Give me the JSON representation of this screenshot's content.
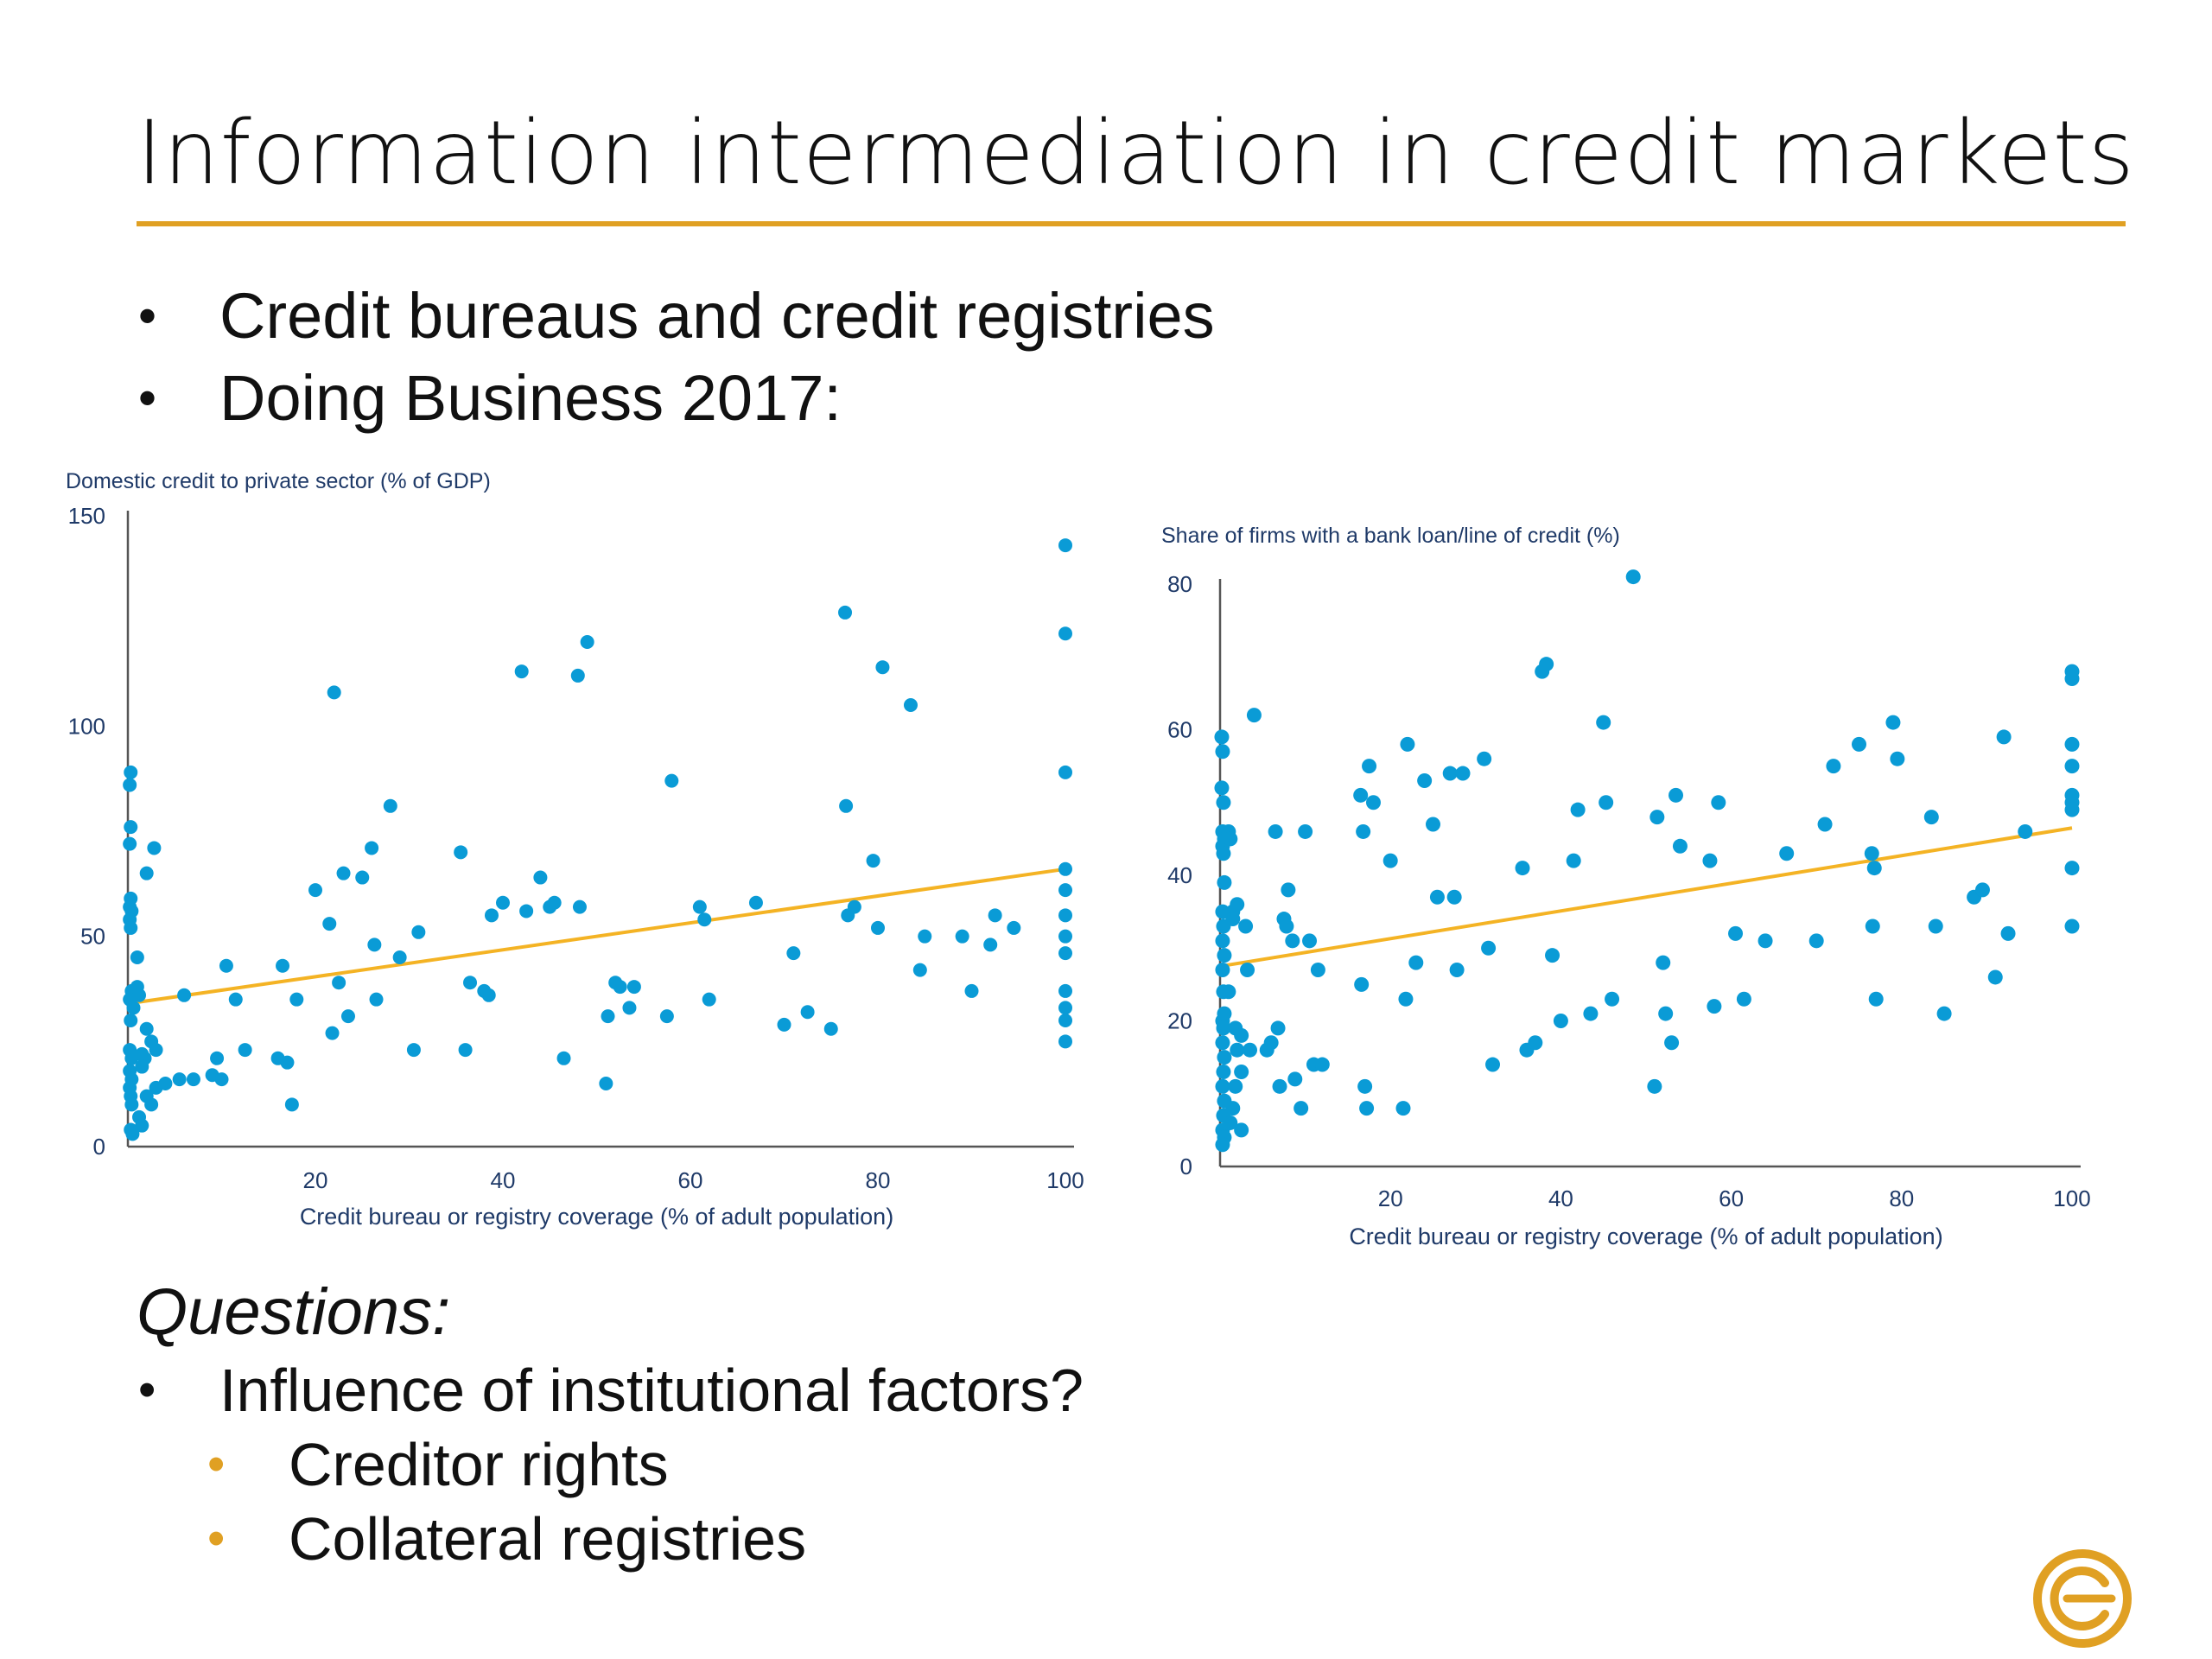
{
  "slide": {
    "title": "Information intermediation in credit markets",
    "accent_color": "#E0A023",
    "bullets": [
      "Credit bureaus and credit registries",
      "Doing Business 2017:"
    ],
    "questions_heading": "Questions:",
    "questions": [
      {
        "level": 1,
        "text": "Influence of institutional factors?"
      },
      {
        "level": 2,
        "text": "Creditor rights"
      },
      {
        "level": 2,
        "text": "Collateral registries"
      }
    ],
    "logo_icon": "circled-c-logo-icon"
  },
  "chart_data": [
    {
      "type": "scatter",
      "ylabel": "Domestic credit to private sector (% of GDP)",
      "xlabel": "Credit bureau or registry coverage (% of adult population)",
      "xlim": [
        0,
        100
      ],
      "ylim": [
        0,
        150
      ],
      "xticks": [
        20,
        40,
        60,
        80,
        100
      ],
      "yticks": [
        0,
        50,
        100,
        150
      ],
      "point_color": "#0A9BD6",
      "trend_color": "#F4B324",
      "trendline": [
        [
          0,
          34
        ],
        [
          100,
          66
        ]
      ],
      "points": [
        [
          0.3,
          89
        ],
        [
          0.2,
          86
        ],
        [
          0.3,
          76
        ],
        [
          0.2,
          72
        ],
        [
          0.3,
          59
        ],
        [
          0.2,
          57
        ],
        [
          0.4,
          56
        ],
        [
          0.2,
          54
        ],
        [
          0.3,
          52
        ],
        [
          0.4,
          37
        ],
        [
          0.2,
          35
        ],
        [
          0.6,
          33
        ],
        [
          0.3,
          30
        ],
        [
          0.2,
          23
        ],
        [
          0.4,
          21
        ],
        [
          0.2,
          18
        ],
        [
          0.4,
          16
        ],
        [
          0.2,
          14
        ],
        [
          0.3,
          12
        ],
        [
          0.4,
          10
        ],
        [
          0.3,
          4
        ],
        [
          0.5,
          3
        ],
        [
          1.0,
          38
        ],
        [
          1.2,
          36
        ],
        [
          1.0,
          45
        ],
        [
          1.5,
          22
        ],
        [
          1.8,
          21
        ],
        [
          1.5,
          19
        ],
        [
          2.0,
          28
        ],
        [
          2.5,
          25
        ],
        [
          3.0,
          23
        ],
        [
          1.2,
          7
        ],
        [
          1.5,
          5
        ],
        [
          2.5,
          10
        ],
        [
          2.0,
          12
        ],
        [
          3.0,
          14
        ],
        [
          2.0,
          65
        ],
        [
          2.8,
          71
        ],
        [
          4.0,
          15
        ],
        [
          5.5,
          16
        ],
        [
          6.0,
          36
        ],
        [
          7.0,
          16
        ],
        [
          9.0,
          17
        ],
        [
          9.5,
          21
        ],
        [
          10.0,
          16
        ],
        [
          10.5,
          43
        ],
        [
          11.5,
          35
        ],
        [
          12.5,
          23
        ],
        [
          16.0,
          21
        ],
        [
          16.5,
          43
        ],
        [
          17.0,
          20
        ],
        [
          17.5,
          10
        ],
        [
          18.0,
          35
        ],
        [
          20.0,
          61
        ],
        [
          21.5,
          53
        ],
        [
          21.8,
          27
        ],
        [
          22.0,
          108
        ],
        [
          22.5,
          39
        ],
        [
          23.0,
          65
        ],
        [
          23.5,
          31
        ],
        [
          25.0,
          64
        ],
        [
          26.0,
          71
        ],
        [
          26.3,
          48
        ],
        [
          26.5,
          35
        ],
        [
          28.0,
          81
        ],
        [
          29.0,
          45
        ],
        [
          30.5,
          23
        ],
        [
          31.0,
          51
        ],
        [
          35.5,
          70
        ],
        [
          36.0,
          23
        ],
        [
          36.5,
          39
        ],
        [
          38.0,
          37
        ],
        [
          38.5,
          36
        ],
        [
          38.8,
          55
        ],
        [
          40.0,
          58
        ],
        [
          42.0,
          113
        ],
        [
          42.5,
          56
        ],
        [
          44.0,
          64
        ],
        [
          45.0,
          57
        ],
        [
          45.5,
          58
        ],
        [
          46.5,
          21
        ],
        [
          48.0,
          112
        ],
        [
          48.2,
          57
        ],
        [
          49.0,
          120
        ],
        [
          51.0,
          15
        ],
        [
          51.2,
          31
        ],
        [
          52.0,
          39
        ],
        [
          52.5,
          38
        ],
        [
          53.5,
          33
        ],
        [
          54.0,
          38
        ],
        [
          57.5,
          31
        ],
        [
          58.0,
          87
        ],
        [
          61.0,
          57
        ],
        [
          61.5,
          54
        ],
        [
          62.0,
          35
        ],
        [
          67.0,
          58
        ],
        [
          70.0,
          29
        ],
        [
          71.0,
          46
        ],
        [
          72.5,
          32
        ],
        [
          75.0,
          28
        ],
        [
          76.5,
          127
        ],
        [
          76.6,
          81
        ],
        [
          76.8,
          55
        ],
        [
          77.5,
          57
        ],
        [
          79.5,
          68
        ],
        [
          80.0,
          52
        ],
        [
          80.5,
          114
        ],
        [
          83.5,
          105
        ],
        [
          84.5,
          42
        ],
        [
          85.0,
          50
        ],
        [
          89.0,
          50
        ],
        [
          90.0,
          37
        ],
        [
          92.0,
          48
        ],
        [
          92.5,
          55
        ],
        [
          94.5,
          52
        ],
        [
          100,
          143
        ],
        [
          100,
          122
        ],
        [
          100,
          89
        ],
        [
          100,
          66
        ],
        [
          100,
          61
        ],
        [
          100,
          55
        ],
        [
          100,
          50
        ],
        [
          100,
          46
        ],
        [
          100,
          37
        ],
        [
          100,
          33
        ],
        [
          100,
          30
        ],
        [
          100,
          25
        ]
      ]
    },
    {
      "type": "scatter",
      "ylabel": "Share of firms with a bank loan/line of credit (%)",
      "xlabel": "Credit bureau or registry coverage (% of adult population)",
      "xlim": [
        0,
        100
      ],
      "ylim": [
        0,
        80
      ],
      "xticks": [
        20,
        40,
        60,
        80,
        100
      ],
      "yticks": [
        0,
        20,
        40,
        60,
        80
      ],
      "point_color": "#0A9BD6",
      "trend_color": "#F4B324",
      "trendline": [
        [
          0,
          27.5
        ],
        [
          100,
          46.5
        ]
      ],
      "points": [
        [
          0.2,
          59
        ],
        [
          0.3,
          57
        ],
        [
          0.2,
          52
        ],
        [
          0.4,
          50
        ],
        [
          0.3,
          46
        ],
        [
          0.5,
          45
        ],
        [
          0.3,
          44
        ],
        [
          0.4,
          43
        ],
        [
          0.5,
          39
        ],
        [
          0.3,
          35
        ],
        [
          0.4,
          33
        ],
        [
          0.3,
          31
        ],
        [
          0.5,
          29
        ],
        [
          0.3,
          27
        ],
        [
          0.4,
          24
        ],
        [
          0.5,
          21
        ],
        [
          0.3,
          20
        ],
        [
          0.4,
          19
        ],
        [
          0.3,
          17
        ],
        [
          0.5,
          15
        ],
        [
          0.4,
          13
        ],
        [
          0.3,
          11
        ],
        [
          0.5,
          9
        ],
        [
          0.4,
          7
        ],
        [
          0.3,
          5
        ],
        [
          0.5,
          4
        ],
        [
          0.3,
          3
        ],
        [
          1.0,
          46
        ],
        [
          1.2,
          45
        ],
        [
          1.5,
          35
        ],
        [
          2.0,
          36
        ],
        [
          1.5,
          34
        ],
        [
          1.0,
          24
        ],
        [
          1.8,
          19
        ],
        [
          2.5,
          18
        ],
        [
          2.0,
          16
        ],
        [
          2.5,
          13
        ],
        [
          1.8,
          11
        ],
        [
          1.5,
          8
        ],
        [
          1.2,
          6
        ],
        [
          2.5,
          5
        ],
        [
          3.0,
          33
        ],
        [
          3.2,
          27
        ],
        [
          3.5,
          16
        ],
        [
          4.0,
          62
        ],
        [
          5.5,
          16
        ],
        [
          6.0,
          17
        ],
        [
          6.5,
          46
        ],
        [
          6.8,
          19
        ],
        [
          7.0,
          11
        ],
        [
          7.5,
          34
        ],
        [
          7.8,
          33
        ],
        [
          8.0,
          38
        ],
        [
          8.5,
          31
        ],
        [
          8.8,
          12
        ],
        [
          9.5,
          8
        ],
        [
          10.0,
          46
        ],
        [
          10.5,
          31
        ],
        [
          11.0,
          14
        ],
        [
          11.5,
          27
        ],
        [
          12.0,
          14
        ],
        [
          16.5,
          51
        ],
        [
          16.8,
          46
        ],
        [
          16.6,
          25
        ],
        [
          17.0,
          11
        ],
        [
          17.2,
          8
        ],
        [
          17.5,
          55
        ],
        [
          18.0,
          50
        ],
        [
          20.0,
          42
        ],
        [
          21.5,
          8
        ],
        [
          21.8,
          23
        ],
        [
          22.0,
          58
        ],
        [
          23.0,
          28
        ],
        [
          24.0,
          53
        ],
        [
          25.0,
          47
        ],
        [
          25.5,
          37
        ],
        [
          27.0,
          54
        ],
        [
          27.5,
          37
        ],
        [
          27.8,
          27
        ],
        [
          28.5,
          54
        ],
        [
          31.0,
          56
        ],
        [
          31.5,
          30
        ],
        [
          32.0,
          14
        ],
        [
          35.5,
          41
        ],
        [
          36.0,
          16
        ],
        [
          37.0,
          17
        ],
        [
          37.8,
          68
        ],
        [
          38.3,
          69
        ],
        [
          39.0,
          29
        ],
        [
          40.0,
          20
        ],
        [
          41.5,
          42
        ],
        [
          42.0,
          49
        ],
        [
          43.5,
          21
        ],
        [
          45.0,
          61
        ],
        [
          45.3,
          50
        ],
        [
          46.0,
          23
        ],
        [
          48.5,
          81
        ],
        [
          51.0,
          11
        ],
        [
          51.3,
          48
        ],
        [
          52.0,
          28
        ],
        [
          52.3,
          21
        ],
        [
          53.0,
          17
        ],
        [
          53.5,
          51
        ],
        [
          54.0,
          44
        ],
        [
          57.5,
          42
        ],
        [
          58.0,
          22
        ],
        [
          58.5,
          50
        ],
        [
          60.5,
          32
        ],
        [
          61.5,
          23
        ],
        [
          64.0,
          31
        ],
        [
          66.5,
          43
        ],
        [
          70.0,
          31
        ],
        [
          71.0,
          47
        ],
        [
          72.0,
          55
        ],
        [
          75.0,
          58
        ],
        [
          76.5,
          43
        ],
        [
          76.8,
          41
        ],
        [
          76.6,
          33
        ],
        [
          77.0,
          23
        ],
        [
          79.0,
          61
        ],
        [
          79.5,
          56
        ],
        [
          83.5,
          48
        ],
        [
          84.0,
          33
        ],
        [
          85.0,
          21
        ],
        [
          88.5,
          37
        ],
        [
          89.5,
          38
        ],
        [
          91.0,
          26
        ],
        [
          92.0,
          59
        ],
        [
          92.5,
          32
        ],
        [
          94.5,
          46
        ],
        [
          100,
          68
        ],
        [
          100,
          67
        ],
        [
          100,
          58
        ],
        [
          100,
          55
        ],
        [
          100,
          51
        ],
        [
          100,
          50
        ],
        [
          100,
          49
        ],
        [
          100,
          41
        ],
        [
          100,
          33
        ]
      ]
    }
  ]
}
